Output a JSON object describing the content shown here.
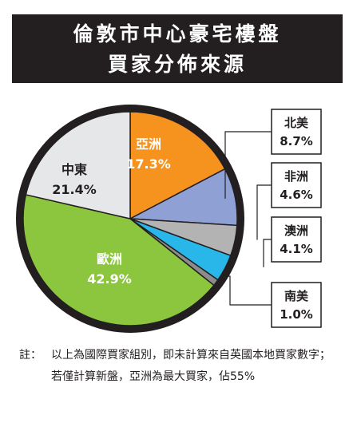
{
  "header": {
    "title_line1": "倫敦市中心豪宅樓盤",
    "title_line2": "買家分佈來源"
  },
  "chart_data": {
    "type": "pie",
    "title": "倫敦市中心豪宅樓盤 買家分佈來源",
    "slices": [
      {
        "label": "亞洲",
        "value": 17.3,
        "display": "17.3%",
        "color": "#f6921e"
      },
      {
        "label": "北美",
        "value": 8.7,
        "display": "8.7%",
        "color": "#8fa0d4"
      },
      {
        "label": "非洲",
        "value": 4.6,
        "display": "4.6%",
        "color": "#b3b3b3"
      },
      {
        "label": "澳洲",
        "value": 4.1,
        "display": "4.1%",
        "color": "#29b6e8"
      },
      {
        "label": "南美",
        "value": 1.0,
        "display": "1.0%",
        "color": "#8c8c8c"
      },
      {
        "label": "歐洲",
        "value": 42.9,
        "display": "42.9%",
        "color": "#8cc63f"
      },
      {
        "label": "中東",
        "value": 21.4,
        "display": "21.4%",
        "color": "#e6e7e8"
      }
    ]
  },
  "footnote": {
    "prefix": "註：",
    "text": "以上為國際買家組別，即未計算來自英國本地買家數字；若僅計算新盤，亞洲為最大買家，佔55%"
  },
  "colors": {
    "title_bg": "#231f20",
    "ring": "#231f20"
  }
}
